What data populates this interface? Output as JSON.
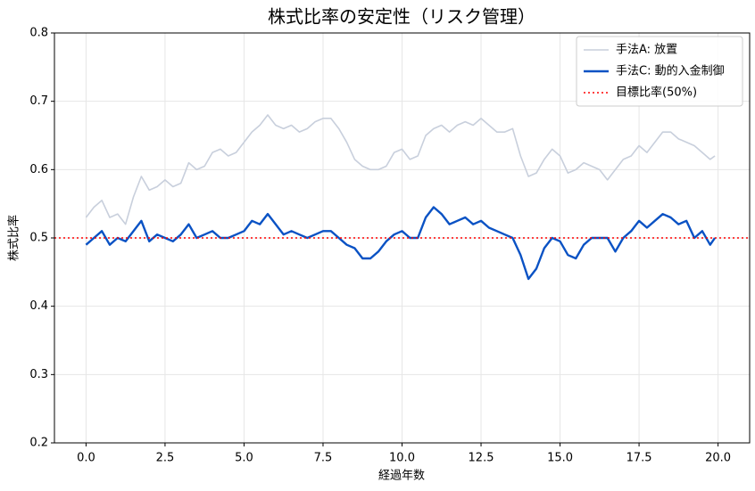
{
  "chart_data": {
    "type": "line",
    "title": "株式比率の安定性（リスク管理）",
    "x_label": "経過年数",
    "y_label": "株式比率",
    "x": [
      0,
      0.25,
      0.5,
      0.75,
      1,
      1.25,
      1.5,
      1.75,
      2,
      2.25,
      2.5,
      2.75,
      3,
      3.25,
      3.5,
      3.75,
      4,
      4.25,
      4.5,
      4.75,
      5,
      5.25,
      5.5,
      5.75,
      6,
      6.25,
      6.5,
      6.75,
      7,
      7.25,
      7.5,
      7.75,
      8,
      8.25,
      8.5,
      8.75,
      9,
      9.25,
      9.5,
      9.75,
      10,
      10.25,
      10.5,
      10.75,
      11,
      11.25,
      11.5,
      11.75,
      12,
      12.25,
      12.5,
      12.75,
      13,
      13.25,
      13.5,
      13.75,
      14,
      14.25,
      14.5,
      14.75,
      15,
      15.25,
      15.5,
      15.75,
      16,
      16.25,
      16.5,
      16.75,
      17,
      17.25,
      17.5,
      17.75,
      18,
      18.25,
      18.5,
      18.75,
      19,
      19.25,
      19.5,
      19.75,
      19.9
    ],
    "series": [
      {
        "name": "手法A: 放置",
        "color": "#c8cfdc",
        "width": 1.6,
        "values": [
          0.53,
          0.545,
          0.555,
          0.53,
          0.535,
          0.52,
          0.56,
          0.59,
          0.57,
          0.575,
          0.585,
          0.575,
          0.58,
          0.61,
          0.6,
          0.605,
          0.625,
          0.63,
          0.62,
          0.625,
          0.64,
          0.655,
          0.665,
          0.68,
          0.665,
          0.66,
          0.665,
          0.655,
          0.66,
          0.67,
          0.675,
          0.675,
          0.66,
          0.64,
          0.615,
          0.605,
          0.6,
          0.6,
          0.605,
          0.625,
          0.63,
          0.615,
          0.62,
          0.65,
          0.66,
          0.665,
          0.655,
          0.665,
          0.67,
          0.665,
          0.675,
          0.665,
          0.655,
          0.655,
          0.66,
          0.62,
          0.59,
          0.595,
          0.615,
          0.63,
          0.62,
          0.595,
          0.6,
          0.61,
          0.605,
          0.6,
          0.585,
          0.6,
          0.615,
          0.62,
          0.635,
          0.625,
          0.64,
          0.655,
          0.655,
          0.645,
          0.64,
          0.635,
          0.625,
          0.615,
          0.62
        ]
      },
      {
        "name": "手法C: 動的入金制御",
        "color": "#0a52c4",
        "width": 2.4,
        "values": [
          0.49,
          0.5,
          0.51,
          0.49,
          0.5,
          0.495,
          0.51,
          0.525,
          0.495,
          0.505,
          0.5,
          0.495,
          0.505,
          0.52,
          0.5,
          0.505,
          0.51,
          0.5,
          0.5,
          0.505,
          0.51,
          0.525,
          0.52,
          0.535,
          0.52,
          0.505,
          0.51,
          0.505,
          0.5,
          0.505,
          0.51,
          0.51,
          0.5,
          0.49,
          0.485,
          0.47,
          0.47,
          0.48,
          0.495,
          0.505,
          0.51,
          0.5,
          0.5,
          0.53,
          0.545,
          0.535,
          0.52,
          0.525,
          0.53,
          0.52,
          0.525,
          0.515,
          0.51,
          0.505,
          0.5,
          0.475,
          0.44,
          0.455,
          0.485,
          0.5,
          0.495,
          0.475,
          0.47,
          0.49,
          0.5,
          0.5,
          0.5,
          0.48,
          0.5,
          0.51,
          0.525,
          0.515,
          0.525,
          0.535,
          0.53,
          0.52,
          0.525,
          0.5,
          0.51,
          0.49,
          0.5
        ]
      }
    ],
    "hline": {
      "name": "目標比率(50%)",
      "value": 0.5,
      "color": "#ff0000"
    },
    "xlim": [
      -1,
      21
    ],
    "ylim": [
      0.2,
      0.8
    ],
    "xticks": [
      {
        "value": 0,
        "label": "0.0"
      },
      2.5,
      {
        "value": 5,
        "label": "5.0"
      },
      7.5,
      {
        "value": 10,
        "label": "10.0"
      },
      12.5,
      {
        "value": 15,
        "label": "15.0"
      },
      17.5,
      {
        "value": 20,
        "label": "20.0"
      }
    ],
    "yticks": [
      0.2,
      0.3,
      0.4,
      0.5,
      0.6,
      0.7,
      0.8
    ],
    "grid": true,
    "legend": "upper right"
  }
}
